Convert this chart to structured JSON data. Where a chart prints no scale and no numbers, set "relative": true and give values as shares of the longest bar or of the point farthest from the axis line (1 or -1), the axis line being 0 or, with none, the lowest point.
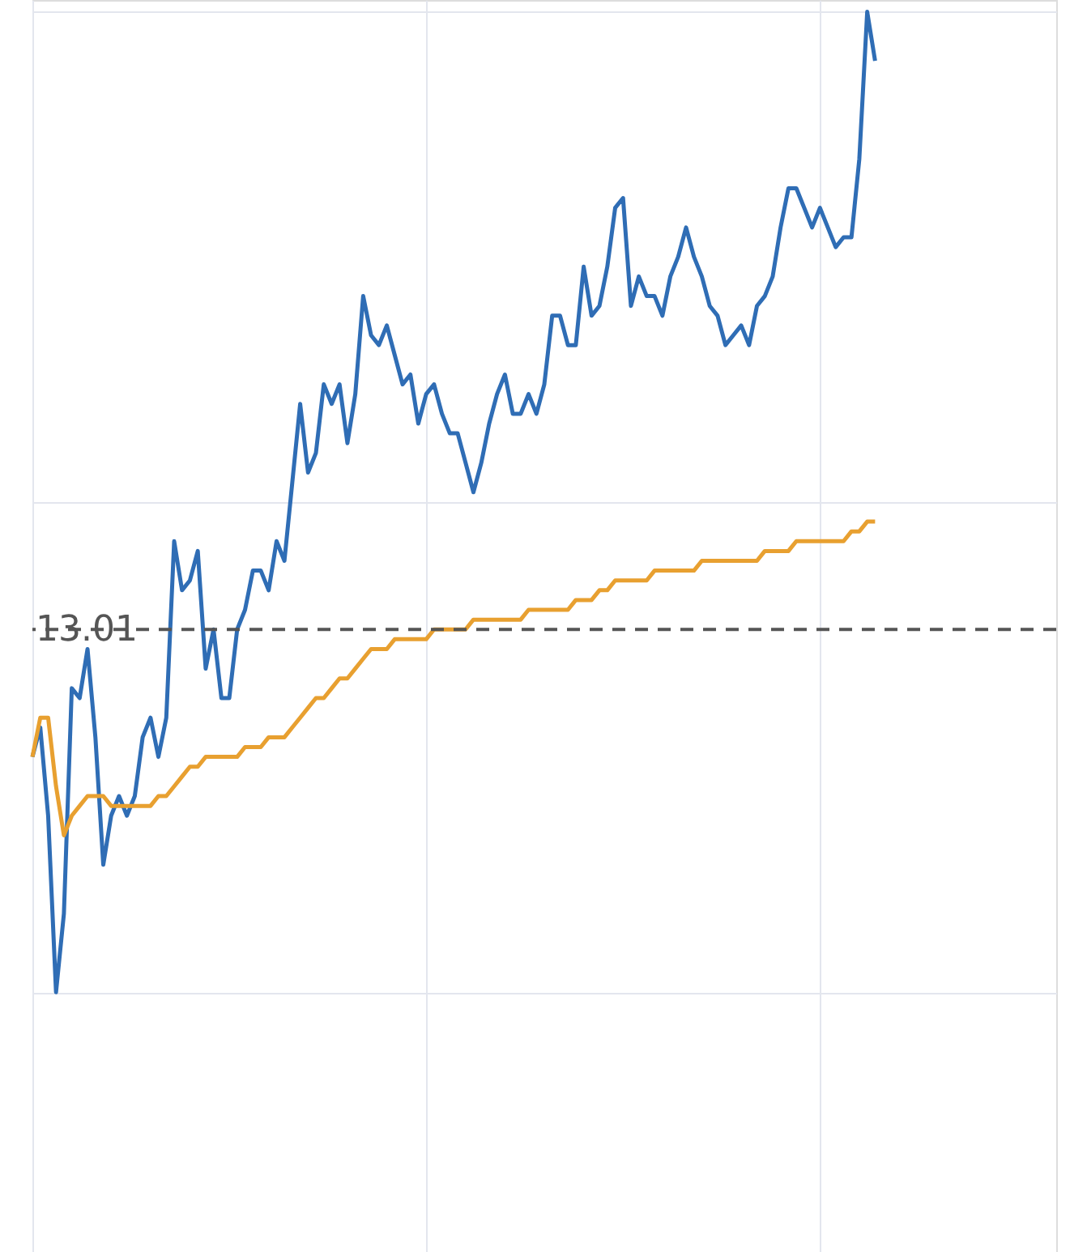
{
  "chart_data": {
    "type": "line",
    "relative": true,
    "categories": [
      null,
      null,
      null,
      null,
      null,
      null,
      null,
      null,
      null,
      null,
      null,
      null,
      null,
      null,
      null,
      null,
      null,
      null,
      null,
      null,
      null,
      null,
      null,
      null,
      null,
      null,
      null,
      null,
      null,
      null,
      null,
      null,
      null,
      null,
      null,
      null,
      null,
      null,
      null,
      null,
      null,
      null,
      null,
      null,
      null,
      null,
      null,
      null,
      null,
      null,
      null,
      null,
      null,
      null,
      null,
      null,
      null,
      null,
      null,
      null,
      null,
      null,
      null,
      null,
      null,
      null,
      null,
      null,
      null,
      null,
      null,
      null,
      null,
      null,
      null,
      null,
      null,
      null,
      null,
      null,
      null,
      null,
      null,
      null,
      null,
      null,
      null,
      null,
      null,
      null,
      null,
      null,
      null,
      null,
      null,
      null,
      null,
      null,
      null,
      null,
      null,
      null,
      null,
      null,
      null,
      null,
      null,
      null,
      null,
      null,
      null,
      null,
      null,
      null,
      null,
      null,
      null,
      null,
      null,
      null,
      null,
      null,
      null,
      null,
      null,
      null,
      null,
      null,
      null,
      null,
      null
    ],
    "series": [
      {
        "color": "#2f6db5",
        "values": [
          0.24,
          0.27,
          0.18,
          0.0,
          0.08,
          0.31,
          0.3,
          0.35,
          0.26,
          0.13,
          0.18,
          0.2,
          0.18,
          0.2,
          0.26,
          0.28,
          0.24,
          0.28,
          0.46,
          0.41,
          0.42,
          0.45,
          0.33,
          0.37,
          0.3,
          0.3,
          0.37,
          0.39,
          0.43,
          0.43,
          0.41,
          0.46,
          0.44,
          0.52,
          0.6,
          0.53,
          0.55,
          0.62,
          0.6,
          0.62,
          0.56,
          0.61,
          0.71,
          0.67,
          0.66,
          0.68,
          0.65,
          0.62,
          0.63,
          0.58,
          0.61,
          0.62,
          0.59,
          0.57,
          0.57,
          0.54,
          0.51,
          0.54,
          0.58,
          0.61,
          0.63,
          0.59,
          0.59,
          0.61,
          0.59,
          0.62,
          0.69,
          0.69,
          0.66,
          0.66,
          0.74,
          0.69,
          0.7,
          0.74,
          0.8,
          0.81,
          0.7,
          0.73,
          0.71,
          0.71,
          0.69,
          0.73,
          0.75,
          0.78,
          0.75,
          0.73,
          0.7,
          0.69,
          0.66,
          0.67,
          0.68,
          0.66,
          0.7,
          0.71,
          0.73,
          0.78,
          0.82,
          0.82,
          0.8,
          0.78,
          0.8,
          0.78,
          0.76,
          0.77,
          0.77,
          0.85,
          1.0,
          0.95,
          null,
          null,
          null,
          null,
          null,
          null,
          null,
          null,
          null,
          null,
          null,
          null,
          null,
          null,
          null,
          null,
          null,
          null,
          null,
          null,
          null,
          null,
          null
        ]
      },
      {
        "color": "#e8a030",
        "values": [
          0.24,
          0.28,
          0.28,
          0.21,
          0.16,
          0.18,
          0.19,
          0.2,
          0.2,
          0.2,
          0.19,
          0.19,
          0.19,
          0.19,
          0.19,
          0.19,
          0.2,
          0.2,
          0.21,
          0.22,
          0.23,
          0.23,
          0.24,
          0.24,
          0.24,
          0.24,
          0.24,
          0.25,
          0.25,
          0.25,
          0.26,
          0.26,
          0.26,
          0.27,
          0.28,
          0.29,
          0.3,
          0.3,
          0.31,
          0.32,
          0.32,
          0.33,
          0.34,
          0.35,
          0.35,
          0.35,
          0.36,
          0.36,
          0.36,
          0.36,
          0.36,
          0.37,
          0.37,
          0.37,
          0.37,
          0.37,
          0.38,
          0.38,
          0.38,
          0.38,
          0.38,
          0.38,
          0.38,
          0.39,
          0.39,
          0.39,
          0.39,
          0.39,
          0.39,
          0.4,
          0.4,
          0.4,
          0.41,
          0.41,
          0.42,
          0.42,
          0.42,
          0.42,
          0.42,
          0.43,
          0.43,
          0.43,
          0.43,
          0.43,
          0.43,
          0.44,
          0.44,
          0.44,
          0.44,
          0.44,
          0.44,
          0.44,
          0.44,
          0.45,
          0.45,
          0.45,
          0.45,
          0.46,
          0.46,
          0.46,
          0.46,
          0.46,
          0.46,
          0.46,
          0.47,
          0.47,
          0.48,
          0.48,
          null,
          null,
          null,
          null,
          null,
          null,
          null,
          null,
          null,
          null,
          null,
          null,
          null,
          null,
          null,
          null,
          null,
          null,
          null,
          null,
          null,
          null,
          null
        ]
      }
    ],
    "ref_lines": [
      {
        "axis": "y",
        "value": 0.37,
        "color": "#555555",
        "line_style": "dashed"
      }
    ],
    "annotations": [
      "13.01"
    ],
    "grid": true
  }
}
